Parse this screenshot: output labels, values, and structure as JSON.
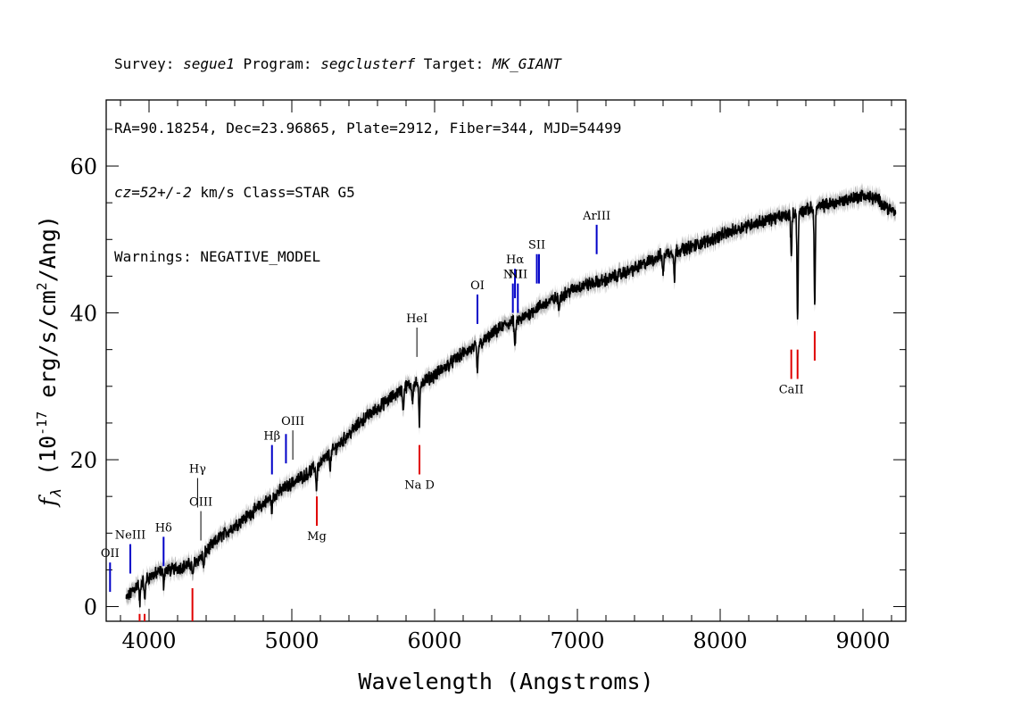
{
  "header": {
    "line1": {
      "survey_label": "Survey: ",
      "survey": "segue1",
      "program_label": " Program: ",
      "program": "segclusterf",
      "target_label": " Target: ",
      "target": "MK_GIANT"
    },
    "line2": "RA=90.18254, Dec=23.96865, Plate=2912, Fiber=344, MJD=54499",
    "line3": {
      "cz": "cz=52+/-2",
      "rest": " km/s Class=STAR G5"
    },
    "line4": "Warnings: NEGATIVE_MODEL"
  },
  "chart_data": {
    "type": "line",
    "xlabel": "Wavelength (Angstroms)",
    "ylabel_parts": {
      "f": "f",
      "sub": "λ",
      "open": " (10",
      "exp1": "-17",
      "mid": " erg/s/cm",
      "exp2": "2",
      "close": "/Ang)"
    },
    "xlim": [
      3700,
      9300
    ],
    "ylim": [
      -2,
      69
    ],
    "x_ticks": [
      4000,
      5000,
      6000,
      7000,
      8000,
      9000
    ],
    "y_ticks": [
      0,
      20,
      40,
      60
    ],
    "x_tick_labels": [
      "4000",
      "5000",
      "6000",
      "7000",
      "8000",
      "9000"
    ],
    "y_tick_labels": [
      "0",
      "20",
      "40",
      "60"
    ],
    "grid": false,
    "series": [
      {
        "color": "#000000",
        "x": [
          3840,
          3880,
          3920,
          3960,
          4000,
          4050,
          4100,
          4150,
          4200,
          4250,
          4300,
          4350,
          4400,
          4450,
          4500,
          4600,
          4700,
          4800,
          4900,
          5000,
          5100,
          5200,
          5300,
          5400,
          5500,
          5600,
          5700,
          5800,
          5900,
          6000,
          6100,
          6200,
          6300,
          6400,
          6500,
          6600,
          6700,
          6800,
          6900,
          7000,
          7200,
          7400,
          7600,
          7800,
          8000,
          8200,
          8400,
          8600,
          8800,
          9000,
          9100,
          9230
        ],
        "y": [
          1,
          2,
          3,
          3.5,
          4,
          4.5,
          5,
          5,
          5.3,
          5.5,
          5.8,
          6.5,
          7.5,
          8.5,
          9.5,
          11,
          12.5,
          14,
          15.5,
          16.8,
          18,
          19.5,
          21.5,
          23.5,
          25.5,
          27,
          28.5,
          30,
          30.5,
          31.5,
          33,
          34.5,
          35.5,
          37,
          38.5,
          39,
          40.5,
          41.5,
          42.5,
          43.5,
          44.5,
          46,
          48,
          49,
          50.5,
          52,
          53,
          54,
          55,
          56,
          55.5,
          53.5
        ]
      }
    ],
    "absorption_dips": [
      {
        "x": 3935,
        "d": 3
      },
      {
        "x": 3970,
        "d": 3
      },
      {
        "x": 4102,
        "d": 2
      },
      {
        "x": 4307,
        "d": 2
      },
      {
        "x": 4383,
        "d": 2
      },
      {
        "x": 4861,
        "d": 2
      },
      {
        "x": 5173,
        "d": 3
      },
      {
        "x": 5270,
        "d": 2
      },
      {
        "x": 5780,
        "d": 3
      },
      {
        "x": 5845,
        "d": 2
      },
      {
        "x": 5893,
        "d": 6
      },
      {
        "x": 6300,
        "d": 4
      },
      {
        "x": 6563,
        "d": 4
      },
      {
        "x": 6870,
        "d": 2
      },
      {
        "x": 7600,
        "d": 3
      },
      {
        "x": 7680,
        "d": 4
      },
      {
        "x": 8498,
        "d": 6
      },
      {
        "x": 8542,
        "d": 15
      },
      {
        "x": 8662,
        "d": 13
      }
    ],
    "emission_lines": [
      {
        "label": "OII",
        "x": 3727,
        "y_lo": 2,
        "y_hi": 6,
        "color": "#0000c8"
      },
      {
        "label": "NeIII",
        "x": 3869,
        "y_lo": 4.5,
        "y_hi": 8.5,
        "color": "#0000c8"
      },
      {
        "label": "Hδ",
        "x": 4102,
        "y_lo": 5.5,
        "y_hi": 9.5,
        "color": "#0000c8"
      },
      {
        "label": "Hγ",
        "x": 4340,
        "y_lo": 13.5,
        "y_hi": 17.5,
        "color": "#000000"
      },
      {
        "label": "OIII",
        "x": 4363,
        "y_lo": 9,
        "y_hi": 13,
        "color": "#000000"
      },
      {
        "label": "Hβ",
        "x": 4861,
        "y_lo": 18,
        "y_hi": 22,
        "color": "#0000c8"
      },
      {
        "label": "",
        "x": 4959,
        "y_lo": 19.5,
        "y_hi": 23.5,
        "color": "#0000c8"
      },
      {
        "label": "OIII",
        "x": 5007,
        "y_lo": 20,
        "y_hi": 24,
        "color": "#000000"
      },
      {
        "label": "HeI",
        "x": 5876,
        "y_lo": 34,
        "y_hi": 38,
        "color": "#000000"
      },
      {
        "label": "OI",
        "x": 6300,
        "y_lo": 38.5,
        "y_hi": 42.5,
        "color": "#0000c8"
      },
      {
        "label": "NII",
        "x": 6548,
        "y_lo": 40,
        "y_hi": 44,
        "color": "#0000c8"
      },
      {
        "label": "Hα",
        "x": 6563,
        "y_lo": 42,
        "y_hi": 46,
        "color": "#0000c8"
      },
      {
        "label": "NII",
        "x": 6583,
        "y_lo": 40,
        "y_hi": 44,
        "color": "#0000c8"
      },
      {
        "label": "SII",
        "x": 6716,
        "y_lo": 44,
        "y_hi": 48,
        "color": "#0000c8"
      },
      {
        "label": "",
        "x": 6731,
        "y_lo": 44,
        "y_hi": 48,
        "color": "#0000c8"
      },
      {
        "label": "ArIII",
        "x": 7135,
        "y_lo": 48,
        "y_hi": 52,
        "color": "#0000c8"
      }
    ],
    "absorption_lines": [
      {
        "label": "",
        "x": 3934,
        "y_lo": -2,
        "y_hi": -1,
        "color": "#e00000"
      },
      {
        "label": "",
        "x": 3969,
        "y_lo": -2,
        "y_hi": -1,
        "color": "#e00000"
      },
      {
        "label": "",
        "x": 4304,
        "y_lo": -2,
        "y_hi": 2.5,
        "color": "#e00000"
      },
      {
        "label": "Mg",
        "x": 5175,
        "y_lo": 11,
        "y_hi": 15,
        "color": "#e00000"
      },
      {
        "label": "Na D",
        "x": 5894,
        "y_lo": 18,
        "y_hi": 22,
        "color": "#e00000"
      },
      {
        "label": "CaII",
        "x": 8498,
        "y_lo": 31,
        "y_hi": 35,
        "color": "#e00000"
      },
      {
        "label": "",
        "x": 8542,
        "y_lo": 31,
        "y_hi": 35,
        "color": "#e00000"
      },
      {
        "label": "",
        "x": 8662,
        "y_lo": 33.5,
        "y_hi": 37.5,
        "color": "#e00000"
      }
    ]
  }
}
